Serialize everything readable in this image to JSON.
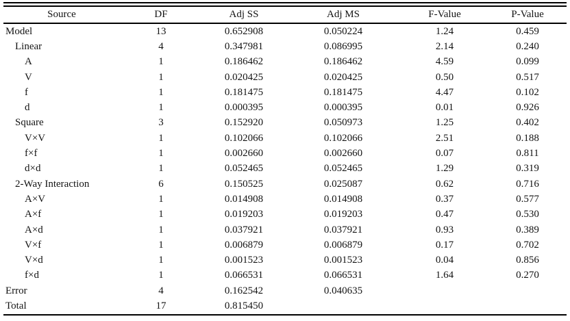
{
  "chart_data": {
    "type": "table",
    "columns": [
      "Source",
      "DF",
      "Adj SS",
      "Adj MS",
      "F-Value",
      "P-Value"
    ],
    "rows": [
      {
        "source": "Model",
        "indent": 0,
        "df": "13",
        "adj_ss": "0.652908",
        "adj_ms": "0.050224",
        "f_value": "1.24",
        "p_value": "0.459"
      },
      {
        "source": "Linear",
        "indent": 1,
        "df": "4",
        "adj_ss": "0.347981",
        "adj_ms": "0.086995",
        "f_value": "2.14",
        "p_value": "0.240"
      },
      {
        "source": "A",
        "indent": 2,
        "df": "1",
        "adj_ss": "0.186462",
        "adj_ms": "0.186462",
        "f_value": "4.59",
        "p_value": "0.099"
      },
      {
        "source": "V",
        "indent": 2,
        "df": "1",
        "adj_ss": "0.020425",
        "adj_ms": "0.020425",
        "f_value": "0.50",
        "p_value": "0.517"
      },
      {
        "source": "f",
        "indent": 2,
        "df": "1",
        "adj_ss": "0.181475",
        "adj_ms": "0.181475",
        "f_value": "4.47",
        "p_value": "0.102"
      },
      {
        "source": "d",
        "indent": 2,
        "df": "1",
        "adj_ss": "0.000395",
        "adj_ms": "0.000395",
        "f_value": "0.01",
        "p_value": "0.926"
      },
      {
        "source": "Square",
        "indent": 1,
        "df": "3",
        "adj_ss": "0.152920",
        "adj_ms": "0.050973",
        "f_value": "1.25",
        "p_value": "0.402"
      },
      {
        "source": "V×V",
        "indent": 2,
        "df": "1",
        "adj_ss": "0.102066",
        "adj_ms": "0.102066",
        "f_value": "2.51",
        "p_value": "0.188"
      },
      {
        "source": "f×f",
        "indent": 2,
        "df": "1",
        "adj_ss": "0.002660",
        "adj_ms": "0.002660",
        "f_value": "0.07",
        "p_value": "0.811"
      },
      {
        "source": "d×d",
        "indent": 2,
        "df": "1",
        "adj_ss": "0.052465",
        "adj_ms": "0.052465",
        "f_value": "1.29",
        "p_value": "0.319"
      },
      {
        "source": "2-Way Interaction",
        "indent": 1,
        "df": "6",
        "adj_ss": "0.150525",
        "adj_ms": "0.025087",
        "f_value": "0.62",
        "p_value": "0.716"
      },
      {
        "source": "A×V",
        "indent": 2,
        "df": "1",
        "adj_ss": "0.014908",
        "adj_ms": "0.014908",
        "f_value": "0.37",
        "p_value": "0.577"
      },
      {
        "source": "A×f",
        "indent": 2,
        "df": "1",
        "adj_ss": "0.019203",
        "adj_ms": "0.019203",
        "f_value": "0.47",
        "p_value": "0.530"
      },
      {
        "source": "A×d",
        "indent": 2,
        "df": "1",
        "adj_ss": "0.037921",
        "adj_ms": "0.037921",
        "f_value": "0.93",
        "p_value": "0.389"
      },
      {
        "source": "V×f",
        "indent": 2,
        "df": "1",
        "adj_ss": "0.006879",
        "adj_ms": "0.006879",
        "f_value": "0.17",
        "p_value": "0.702"
      },
      {
        "source": "V×d",
        "indent": 2,
        "df": "1",
        "adj_ss": "0.001523",
        "adj_ms": "0.001523",
        "f_value": "0.04",
        "p_value": "0.856"
      },
      {
        "source": "f×d",
        "indent": 2,
        "df": "1",
        "adj_ss": "0.066531",
        "adj_ms": "0.066531",
        "f_value": "1.64",
        "p_value": "0.270"
      },
      {
        "source": "Error",
        "indent": 0,
        "df": "4",
        "adj_ss": "0.162542",
        "adj_ms": "0.040635",
        "f_value": "",
        "p_value": ""
      },
      {
        "source": "Total",
        "indent": 0,
        "df": "17",
        "adj_ss": "0.815450",
        "adj_ms": "",
        "f_value": "",
        "p_value": ""
      }
    ]
  }
}
